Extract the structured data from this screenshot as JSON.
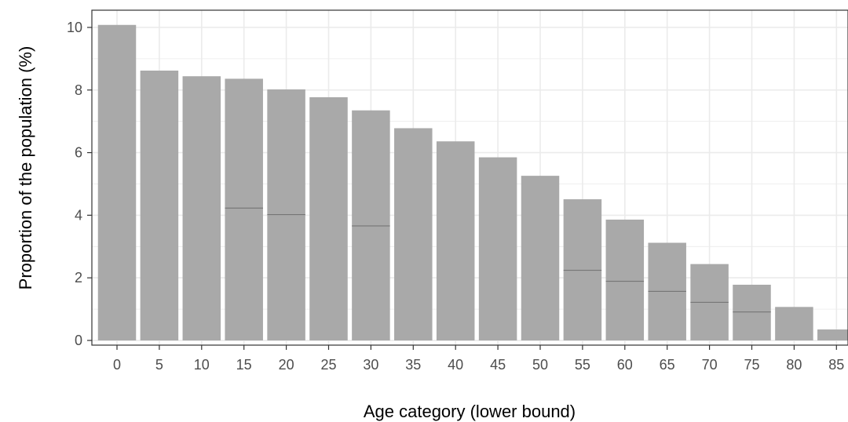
{
  "chart_data": {
    "type": "bar",
    "xlabel": "Age category (lower bound)",
    "ylabel": "Proportion of the population (%)",
    "categories": [
      "0",
      "5",
      "10",
      "15",
      "20",
      "25",
      "30",
      "35",
      "40",
      "45",
      "50",
      "55",
      "60",
      "65",
      "70",
      "75",
      "80",
      "85"
    ],
    "values": [
      10.08,
      8.62,
      8.44,
      8.36,
      8.02,
      7.77,
      7.35,
      6.78,
      6.36,
      5.85,
      5.26,
      4.51,
      3.86,
      3.12,
      2.44,
      1.78,
      1.07,
      0.35
    ],
    "split_values": [
      null,
      null,
      null,
      4.23,
      4.02,
      null,
      3.66,
      null,
      null,
      null,
      null,
      2.24,
      1.89,
      1.57,
      1.22,
      0.91,
      null,
      null
    ],
    "yticks": [
      0,
      2,
      4,
      6,
      8,
      10
    ],
    "ylim": [
      -0.15,
      10.55
    ],
    "grid": true,
    "bar_color": "#a9a9a9",
    "split_line_color": "#6f6f6f",
    "grid_color": "#ebebeb"
  }
}
